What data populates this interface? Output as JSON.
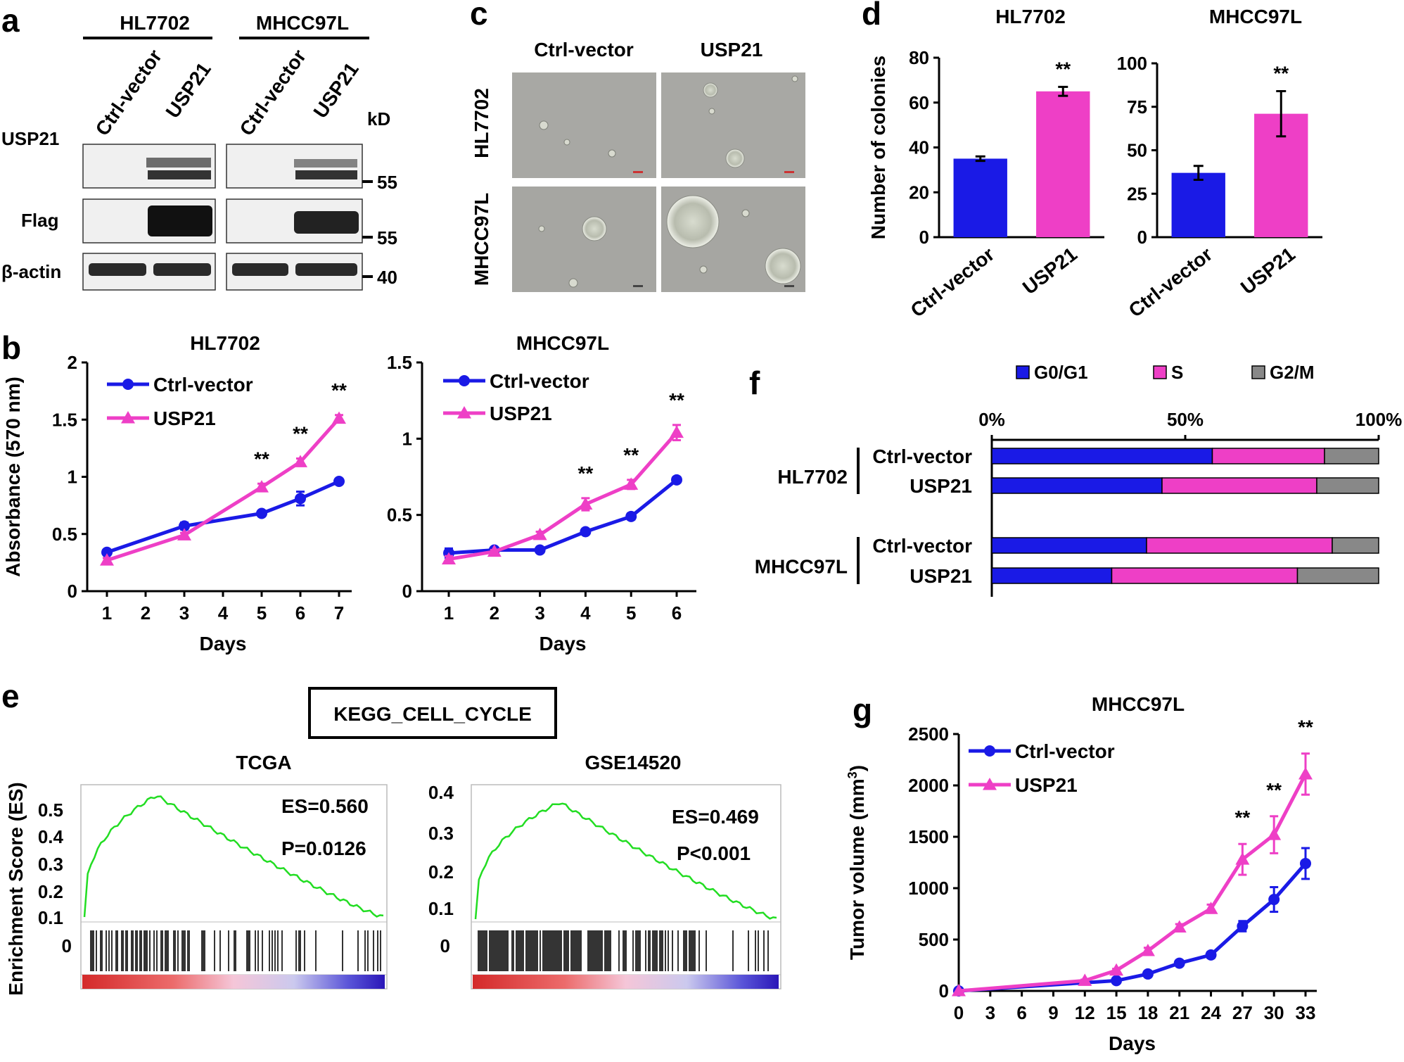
{
  "panels": {
    "a": {
      "letter": "a",
      "groups": [
        "HL7702",
        "MHCC97L"
      ],
      "lanes": [
        "Ctrl-vector",
        "USP21",
        "Ctrl-vector",
        "USP21"
      ],
      "kd_label": "kD",
      "rows": [
        "USP21",
        "Flag",
        "β-actin"
      ],
      "markers": [
        "55",
        "55",
        "40"
      ]
    },
    "b": {
      "letter": "b"
    },
    "c": {
      "letter": "c",
      "columns": [
        "Ctrl-vector",
        "USP21"
      ],
      "rows": [
        "HL7702",
        "MHCC97L"
      ]
    },
    "d": {
      "letter": "d"
    },
    "e": {
      "letter": "e",
      "box_title": "KEGG_CELL_CYCLE",
      "ylabel": "Enrichment Score (ES)",
      "plots": [
        {
          "title": "TCGA",
          "es": "ES=0.560",
          "p": "P=0.0126",
          "yticks": [
            "0.5",
            "0.4",
            "0.3",
            "0.2",
            "0.1"
          ],
          "zero": "0"
        },
        {
          "title": "GSE14520",
          "es": "ES=0.469",
          "p": "P<0.001",
          "yticks": [
            "0.4",
            "0.3",
            "0.2",
            "0.1"
          ],
          "zero": "0"
        }
      ]
    },
    "f": {
      "letter": "f"
    },
    "g": {
      "letter": "g"
    }
  },
  "chart_data": [
    {
      "id": "b1",
      "type": "line",
      "title": "HL7702",
      "xlabel": "Days",
      "ylabel": "Absorbance (570 nm)",
      "x": [
        1,
        3,
        5,
        6,
        7
      ],
      "xticks": [
        "1",
        "2",
        "3",
        "4",
        "5",
        "6",
        "7"
      ],
      "yticks": [
        "0",
        "0.5",
        "1",
        "1.5",
        "2"
      ],
      "ylim": [
        0,
        2
      ],
      "series": [
        {
          "name": "Ctrl-vector",
          "color": "#1a1ae6",
          "marker": "circle",
          "values": [
            0.34,
            0.57,
            0.68,
            0.81,
            0.96
          ],
          "err": [
            0.02,
            0.03,
            0.02,
            0.06,
            0.02
          ]
        },
        {
          "name": "USP21",
          "color": "#ee3fc6",
          "marker": "triangle",
          "values": [
            0.27,
            0.49,
            0.91,
            1.13,
            1.51
          ],
          "err": [
            0.02,
            0.02,
            0.03,
            0.03,
            0.03
          ]
        }
      ],
      "annotations": [
        {
          "x": 5,
          "text": "**"
        },
        {
          "x": 6,
          "text": "**"
        },
        {
          "x": 7,
          "text": "**"
        }
      ]
    },
    {
      "id": "b2",
      "type": "line",
      "title": "MHCC97L",
      "xlabel": "Days",
      "ylabel": "",
      "x": [
        1,
        2,
        3,
        4,
        5,
        6
      ],
      "xticks": [
        "1",
        "2",
        "3",
        "4",
        "5",
        "6"
      ],
      "yticks": [
        "0",
        "0.5",
        "1",
        "1.5"
      ],
      "ylim": [
        0,
        1.5
      ],
      "series": [
        {
          "name": "Ctrl-vector",
          "color": "#1a1ae6",
          "marker": "circle",
          "values": [
            0.25,
            0.27,
            0.27,
            0.39,
            0.49,
            0.73
          ],
          "err": [
            0.03,
            0.01,
            0.01,
            0.01,
            0.02,
            0.01
          ]
        },
        {
          "name": "USP21",
          "color": "#ee3fc6",
          "marker": "triangle",
          "values": [
            0.21,
            0.26,
            0.37,
            0.57,
            0.7,
            1.04
          ],
          "err": [
            0.02,
            0.01,
            0.02,
            0.04,
            0.03,
            0.05
          ]
        }
      ],
      "annotations": [
        {
          "x": 4,
          "text": "**"
        },
        {
          "x": 5,
          "text": "**"
        },
        {
          "x": 6,
          "text": "**"
        }
      ]
    },
    {
      "id": "d1",
      "type": "bar",
      "title": "HL7702",
      "ylabel": "Number of colonies",
      "categories": [
        "Ctrl-vector",
        "USP21"
      ],
      "values": [
        35,
        65
      ],
      "err": [
        1,
        2
      ],
      "colors": [
        "#1a1ae6",
        "#ee3fc6"
      ],
      "yticks": [
        "0",
        "20",
        "40",
        "60",
        "80"
      ],
      "ylim": [
        0,
        80
      ],
      "annotation": "**"
    },
    {
      "id": "d2",
      "type": "bar",
      "title": "MHCC97L",
      "ylabel": "",
      "categories": [
        "Ctrl-vector",
        "USP21"
      ],
      "values": [
        37,
        71
      ],
      "err": [
        4,
        13
      ],
      "colors": [
        "#1a1ae6",
        "#ee3fc6"
      ],
      "yticks": [
        "0",
        "25",
        "50",
        "75",
        "100"
      ],
      "ylim": [
        0,
        100
      ],
      "annotation": "**"
    },
    {
      "id": "f",
      "type": "bar",
      "subtype": "stacked-horizontal-percent",
      "legend": [
        "G0/G1",
        "S",
        "G2/M"
      ],
      "colors": [
        "#1a1ae6",
        "#ee3fc6",
        "#888888"
      ],
      "xticks": [
        "0%",
        "50%",
        "100%"
      ],
      "groups": [
        {
          "name": "HL7702",
          "rows": [
            {
              "name": "Ctrl-vector",
              "values": [
                57,
                29,
                14
              ]
            },
            {
              "name": "USP21",
              "values": [
                44,
                40,
                16
              ]
            }
          ]
        },
        {
          "name": "MHCC97L",
          "rows": [
            {
              "name": "Ctrl-vector",
              "values": [
                40,
                48,
                12
              ]
            },
            {
              "name": "USP21",
              "values": [
                31,
                48,
                21
              ]
            }
          ]
        }
      ]
    },
    {
      "id": "g",
      "type": "line",
      "title": "MHCC97L",
      "xlabel": "Days",
      "ylabel": "Tumor volume (mm3)",
      "xticks": [
        "0",
        "3",
        "6",
        "9",
        "12",
        "15",
        "18",
        "21",
        "24",
        "27",
        "30",
        "33"
      ],
      "yticks": [
        "0",
        "500",
        "1000",
        "1500",
        "2000",
        "2500"
      ],
      "ylim": [
        0,
        2500
      ],
      "series": [
        {
          "name": "Ctrl-vector",
          "color": "#1a1ae6",
          "marker": "circle",
          "x": [
            0,
            15,
            18,
            21,
            24,
            27,
            30,
            33
          ],
          "values": [
            0,
            100,
            165,
            270,
            350,
            630,
            890,
            1240
          ],
          "err": [
            0,
            10,
            15,
            20,
            30,
            50,
            120,
            150
          ]
        },
        {
          "name": "USP21",
          "color": "#ee3fc6",
          "marker": "triangle",
          "x": [
            0,
            12,
            15,
            18,
            21,
            24,
            27,
            30,
            33
          ],
          "values": [
            0,
            100,
            200,
            390,
            620,
            800,
            1280,
            1520,
            2110
          ],
          "err": [
            0,
            10,
            15,
            30,
            30,
            40,
            150,
            180,
            200
          ]
        }
      ],
      "annotations": [
        {
          "x": 27,
          "text": "**"
        },
        {
          "x": 30,
          "text": "**"
        },
        {
          "x": 33,
          "text": "**"
        }
      ]
    }
  ]
}
